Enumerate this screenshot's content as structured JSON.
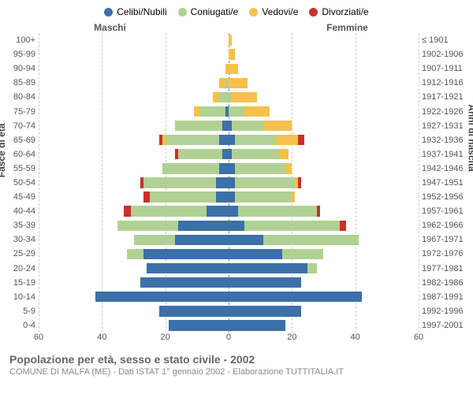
{
  "legend": [
    {
      "label": "Celibi/Nubili",
      "color": "#3b70a8"
    },
    {
      "label": "Coniugati/e",
      "color": "#b0d193"
    },
    {
      "label": "Vedovi/e",
      "color": "#f7c04a"
    },
    {
      "label": "Divorziati/e",
      "color": "#c9302c"
    }
  ],
  "header": {
    "male": "Maschi",
    "female": "Femmine"
  },
  "axis_left_title": "Fasce di età",
  "axis_right_title": "Anni di nascita",
  "x": {
    "max": 60,
    "ticks": [
      60,
      40,
      20,
      0,
      20,
      40,
      60
    ]
  },
  "colors": {
    "celibi": "#3b70a8",
    "coniugati": "#b0d193",
    "vedovi": "#f7c04a",
    "divorziati": "#c9302c",
    "grid": "#cccccc",
    "center": "#888888",
    "bg": "#ffffff"
  },
  "age_labels": [
    "100+",
    "95-99",
    "90-94",
    "85-89",
    "80-84",
    "75-79",
    "70-74",
    "65-69",
    "60-64",
    "55-59",
    "50-54",
    "45-49",
    "40-44",
    "35-39",
    "30-34",
    "25-29",
    "20-24",
    "15-19",
    "10-14",
    "5-9",
    "0-4"
  ],
  "birth_labels": [
    "≤ 1901",
    "1902-1906",
    "1907-1911",
    "1912-1916",
    "1917-1921",
    "1922-1926",
    "1927-1931",
    "1932-1936",
    "1937-1941",
    "1942-1946",
    "1947-1951",
    "1952-1956",
    "1957-1961",
    "1962-1966",
    "1967-1971",
    "1972-1976",
    "1977-1981",
    "1982-1986",
    "1987-1991",
    "1992-1996",
    "1997-2001"
  ],
  "rows": [
    {
      "m": {
        "c": 0,
        "k": 0,
        "v": 0,
        "d": 0
      },
      "f": {
        "c": 0,
        "k": 0,
        "v": 1,
        "d": 0
      }
    },
    {
      "m": {
        "c": 0,
        "k": 0,
        "v": 0,
        "d": 0
      },
      "f": {
        "c": 0,
        "k": 0,
        "v": 2,
        "d": 0
      }
    },
    {
      "m": {
        "c": 0,
        "k": 0,
        "v": 1,
        "d": 0
      },
      "f": {
        "c": 0,
        "k": 0,
        "v": 3,
        "d": 0
      }
    },
    {
      "m": {
        "c": 0,
        "k": 1,
        "v": 2,
        "d": 0
      },
      "f": {
        "c": 0,
        "k": 0,
        "v": 6,
        "d": 0
      }
    },
    {
      "m": {
        "c": 0,
        "k": 3,
        "v": 2,
        "d": 0
      },
      "f": {
        "c": 0,
        "k": 1,
        "v": 8,
        "d": 0
      }
    },
    {
      "m": {
        "c": 1,
        "k": 8,
        "v": 2,
        "d": 0
      },
      "f": {
        "c": 0,
        "k": 5,
        "v": 8,
        "d": 0
      }
    },
    {
      "m": {
        "c": 2,
        "k": 15,
        "v": 0,
        "d": 0
      },
      "f": {
        "c": 1,
        "k": 10,
        "v": 9,
        "d": 0
      }
    },
    {
      "m": {
        "c": 3,
        "k": 17,
        "v": 1,
        "d": 1
      },
      "f": {
        "c": 2,
        "k": 13,
        "v": 7,
        "d": 2
      }
    },
    {
      "m": {
        "c": 2,
        "k": 14,
        "v": 0,
        "d": 1
      },
      "f": {
        "c": 1,
        "k": 15,
        "v": 3,
        "d": 0
      }
    },
    {
      "m": {
        "c": 3,
        "k": 18,
        "v": 0,
        "d": 0
      },
      "f": {
        "c": 2,
        "k": 16,
        "v": 2,
        "d": 0
      }
    },
    {
      "m": {
        "c": 4,
        "k": 23,
        "v": 0,
        "d": 1
      },
      "f": {
        "c": 2,
        "k": 19,
        "v": 1,
        "d": 1
      }
    },
    {
      "m": {
        "c": 4,
        "k": 21,
        "v": 0,
        "d": 2
      },
      "f": {
        "c": 2,
        "k": 18,
        "v": 1,
        "d": 0
      }
    },
    {
      "m": {
        "c": 7,
        "k": 24,
        "v": 0,
        "d": 2
      },
      "f": {
        "c": 3,
        "k": 25,
        "v": 0,
        "d": 1
      }
    },
    {
      "m": {
        "c": 16,
        "k": 19,
        "v": 0,
        "d": 0
      },
      "f": {
        "c": 5,
        "k": 30,
        "v": 0,
        "d": 2
      }
    },
    {
      "m": {
        "c": 17,
        "k": 13,
        "v": 0,
        "d": 0
      },
      "f": {
        "c": 11,
        "k": 30,
        "v": 0,
        "d": 0
      }
    },
    {
      "m": {
        "c": 27,
        "k": 5,
        "v": 0,
        "d": 0
      },
      "f": {
        "c": 17,
        "k": 13,
        "v": 0,
        "d": 0
      }
    },
    {
      "m": {
        "c": 26,
        "k": 0,
        "v": 0,
        "d": 0
      },
      "f": {
        "c": 25,
        "k": 3,
        "v": 0,
        "d": 0
      }
    },
    {
      "m": {
        "c": 28,
        "k": 0,
        "v": 0,
        "d": 0
      },
      "f": {
        "c": 23,
        "k": 0,
        "v": 0,
        "d": 0
      }
    },
    {
      "m": {
        "c": 42,
        "k": 0,
        "v": 0,
        "d": 0
      },
      "f": {
        "c": 42,
        "k": 0,
        "v": 0,
        "d": 0
      }
    },
    {
      "m": {
        "c": 22,
        "k": 0,
        "v": 0,
        "d": 0
      },
      "f": {
        "c": 23,
        "k": 0,
        "v": 0,
        "d": 0
      }
    },
    {
      "m": {
        "c": 19,
        "k": 0,
        "v": 0,
        "d": 0
      },
      "f": {
        "c": 18,
        "k": 0,
        "v": 0,
        "d": 0
      }
    }
  ],
  "footer": {
    "title": "Popolazione per età, sesso e stato civile - 2002",
    "subtitle": "COMUNE DI MALFA (ME) - Dati ISTAT 1° gennaio 2002 - Elaborazione TUTTITALIA.IT"
  }
}
